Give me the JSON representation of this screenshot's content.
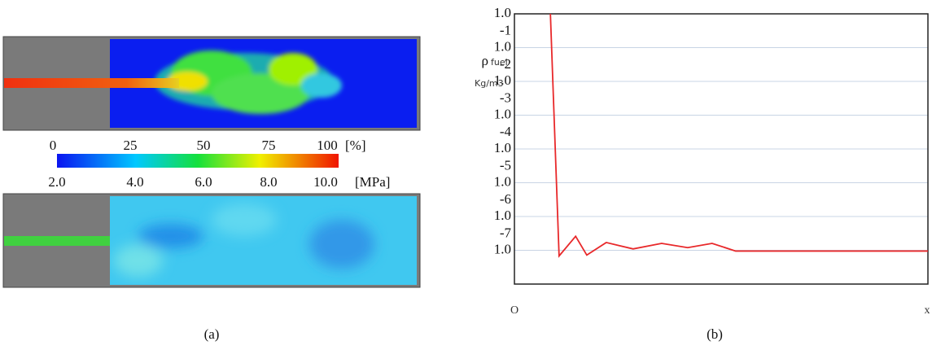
{
  "panel_a": {
    "percent_scale": {
      "labels": [
        "0",
        "25",
        "50",
        "75",
        "100"
      ],
      "unit": "[%]"
    },
    "pressure_scale": {
      "labels": [
        "2.0",
        "4.0",
        "6.0",
        "8.0",
        "10.0"
      ],
      "unit": "[MPa]"
    },
    "caption": "(a)"
  },
  "chart_data": {
    "type": "line",
    "ylabel": "ρ",
    "ylabel_sub": "fuel",
    "yunit": "Kg/m3",
    "x_origin_label": "O",
    "xlabel": "x",
    "x": [
      8.7,
      10.8,
      14.8,
      17.5,
      22.2,
      28.7,
      35.6,
      41.9,
      47.8,
      53.5,
      100
    ],
    "series": [
      {
        "color": "#e8282a",
        "values": [
          1,
          6.8e-08,
          2.6e-07,
          7.2e-08,
          1.7e-07,
          1.1e-07,
          1.6e-07,
          1.2e-07,
          1.6e-07,
          9.5e-08,
          9.5e-08
        ]
      }
    ],
    "xlim": [
      0,
      100
    ],
    "ylim": [
      1e-08,
      1
    ],
    "yscale": "log",
    "grid": true,
    "yticks": [
      {
        "value": 1,
        "label": "1.0"
      },
      {
        "value": 0.1,
        "label": "1.0",
        "exponent": "-1"
      },
      {
        "value": 0.01,
        "label": "1.0",
        "exponent": "-2"
      },
      {
        "value": 0.001,
        "label": "1.0",
        "exponent": "-3"
      },
      {
        "value": 0.0001,
        "label": "1.0",
        "exponent": "-4"
      },
      {
        "value": 1e-05,
        "label": "1.0",
        "exponent": "-5"
      },
      {
        "value": 1e-06,
        "label": "1.0",
        "exponent": "-6"
      },
      {
        "value": 1e-07,
        "label": "1.0",
        "exponent": "-7"
      }
    ],
    "caption": "(b)"
  }
}
